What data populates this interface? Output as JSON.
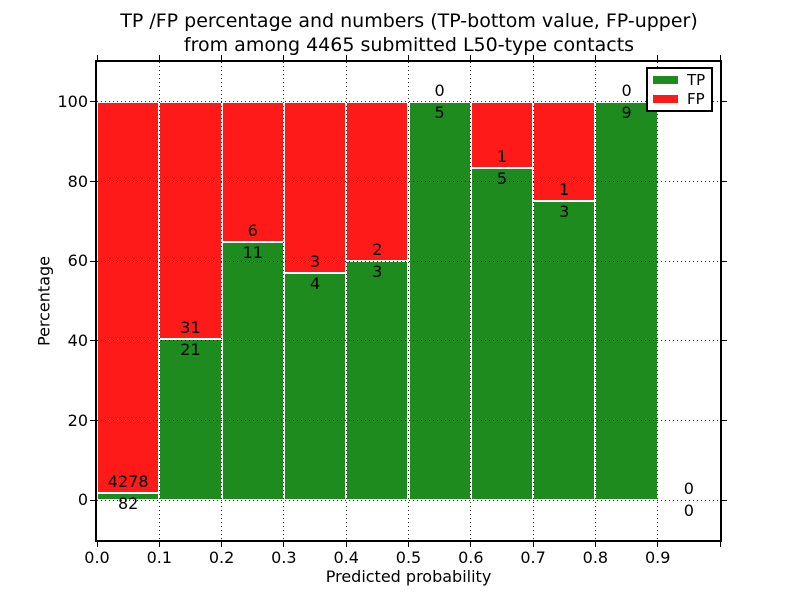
{
  "chart_data": {
    "type": "bar",
    "stacked": true,
    "title_line1": "TP /FP percentage and numbers (TP-bottom value, FP-upper)",
    "title_line2": "from among 4465 submitted L50-type contacts",
    "xlabel": "Predicted probability",
    "ylabel": "Percentage",
    "xlim": [
      0.0,
      1.0
    ],
    "ylim": [
      -10,
      110
    ],
    "x_tick_labels": [
      "0.0",
      "0.1",
      "0.2",
      "0.3",
      "0.4",
      "0.5",
      "0.6",
      "0.7",
      "0.8",
      "0.9"
    ],
    "y_tick_values": [
      0,
      20,
      40,
      60,
      80,
      100
    ],
    "grid": "dotted",
    "legend": {
      "position": "upper right",
      "entries": [
        {
          "label": "TP",
          "color": "#1e8b1e"
        },
        {
          "label": "FP",
          "color": "#ff1a1a"
        }
      ]
    },
    "colors": {
      "tp": "#1e8b1e",
      "fp": "#ff1a1a",
      "bar_edge": "#ffffff",
      "grid": "#000000",
      "text": "#000000",
      "background": "#ffffff"
    },
    "bins": [
      {
        "x_start": 0.0,
        "x_end": 0.1,
        "tp_count": 82,
        "fp_count": 4278,
        "tp_pct": 1.88,
        "fp_pct": 98.12,
        "has_bar": true
      },
      {
        "x_start": 0.1,
        "x_end": 0.2,
        "tp_count": 21,
        "fp_count": 31,
        "tp_pct": 40.38,
        "fp_pct": 59.62,
        "has_bar": true
      },
      {
        "x_start": 0.2,
        "x_end": 0.3,
        "tp_count": 11,
        "fp_count": 6,
        "tp_pct": 64.71,
        "fp_pct": 35.29,
        "has_bar": true
      },
      {
        "x_start": 0.3,
        "x_end": 0.4,
        "tp_count": 4,
        "fp_count": 3,
        "tp_pct": 57.14,
        "fp_pct": 42.86,
        "has_bar": true
      },
      {
        "x_start": 0.4,
        "x_end": 0.5,
        "tp_count": 3,
        "fp_count": 2,
        "tp_pct": 60.0,
        "fp_pct": 40.0,
        "has_bar": true
      },
      {
        "x_start": 0.5,
        "x_end": 0.6,
        "tp_count": 5,
        "fp_count": 0,
        "tp_pct": 100.0,
        "fp_pct": 0.0,
        "has_bar": true
      },
      {
        "x_start": 0.6,
        "x_end": 0.7,
        "tp_count": 5,
        "fp_count": 1,
        "tp_pct": 83.33,
        "fp_pct": 16.67,
        "has_bar": true
      },
      {
        "x_start": 0.7,
        "x_end": 0.8,
        "tp_count": 3,
        "fp_count": 1,
        "tp_pct": 75.0,
        "fp_pct": 25.0,
        "has_bar": true
      },
      {
        "x_start": 0.8,
        "x_end": 0.9,
        "tp_count": 9,
        "fp_count": 0,
        "tp_pct": 100.0,
        "fp_pct": 0.0,
        "has_bar": true
      },
      {
        "x_start": 0.9,
        "x_end": 1.0,
        "tp_count": 0,
        "fp_count": 0,
        "tp_pct": 0.0,
        "fp_pct": 0.0,
        "has_bar": false
      }
    ]
  }
}
